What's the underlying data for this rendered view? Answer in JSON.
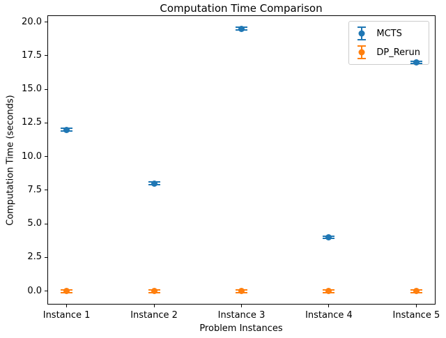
{
  "chart_data": {
    "type": "scatter",
    "subtype": "errorbar",
    "title": "Computation Time Comparison",
    "xlabel": "Problem Instances",
    "ylabel": "Computation Time (seconds)",
    "categories": [
      "Instance 1",
      "Instance 2",
      "Instance 3",
      "Instance 4",
      "Instance 5"
    ],
    "series": [
      {
        "name": "MCTS",
        "color": "#1f77b4",
        "values": [
          12.0,
          8.0,
          19.5,
          4.0,
          17.0
        ],
        "yerr": [
          0.1,
          0.1,
          0.1,
          0.1,
          0.1
        ]
      },
      {
        "name": "DP_Rerun",
        "color": "#ff7f0e",
        "values": [
          0.0,
          0.0,
          0.0,
          0.0,
          0.0
        ],
        "yerr": [
          0.1,
          0.1,
          0.1,
          0.1,
          0.1
        ]
      }
    ],
    "yticks": [
      0.0,
      2.5,
      5.0,
      7.5,
      10.0,
      12.5,
      15.0,
      17.5,
      20.0
    ],
    "ytick_labels": [
      "0.0",
      "2.5",
      "5.0",
      "7.5",
      "10.0",
      "12.5",
      "15.0",
      "17.5",
      "20.0"
    ],
    "ylim": [
      -1.0,
      20.5
    ],
    "grid": false,
    "legend_position": "upper right"
  }
}
